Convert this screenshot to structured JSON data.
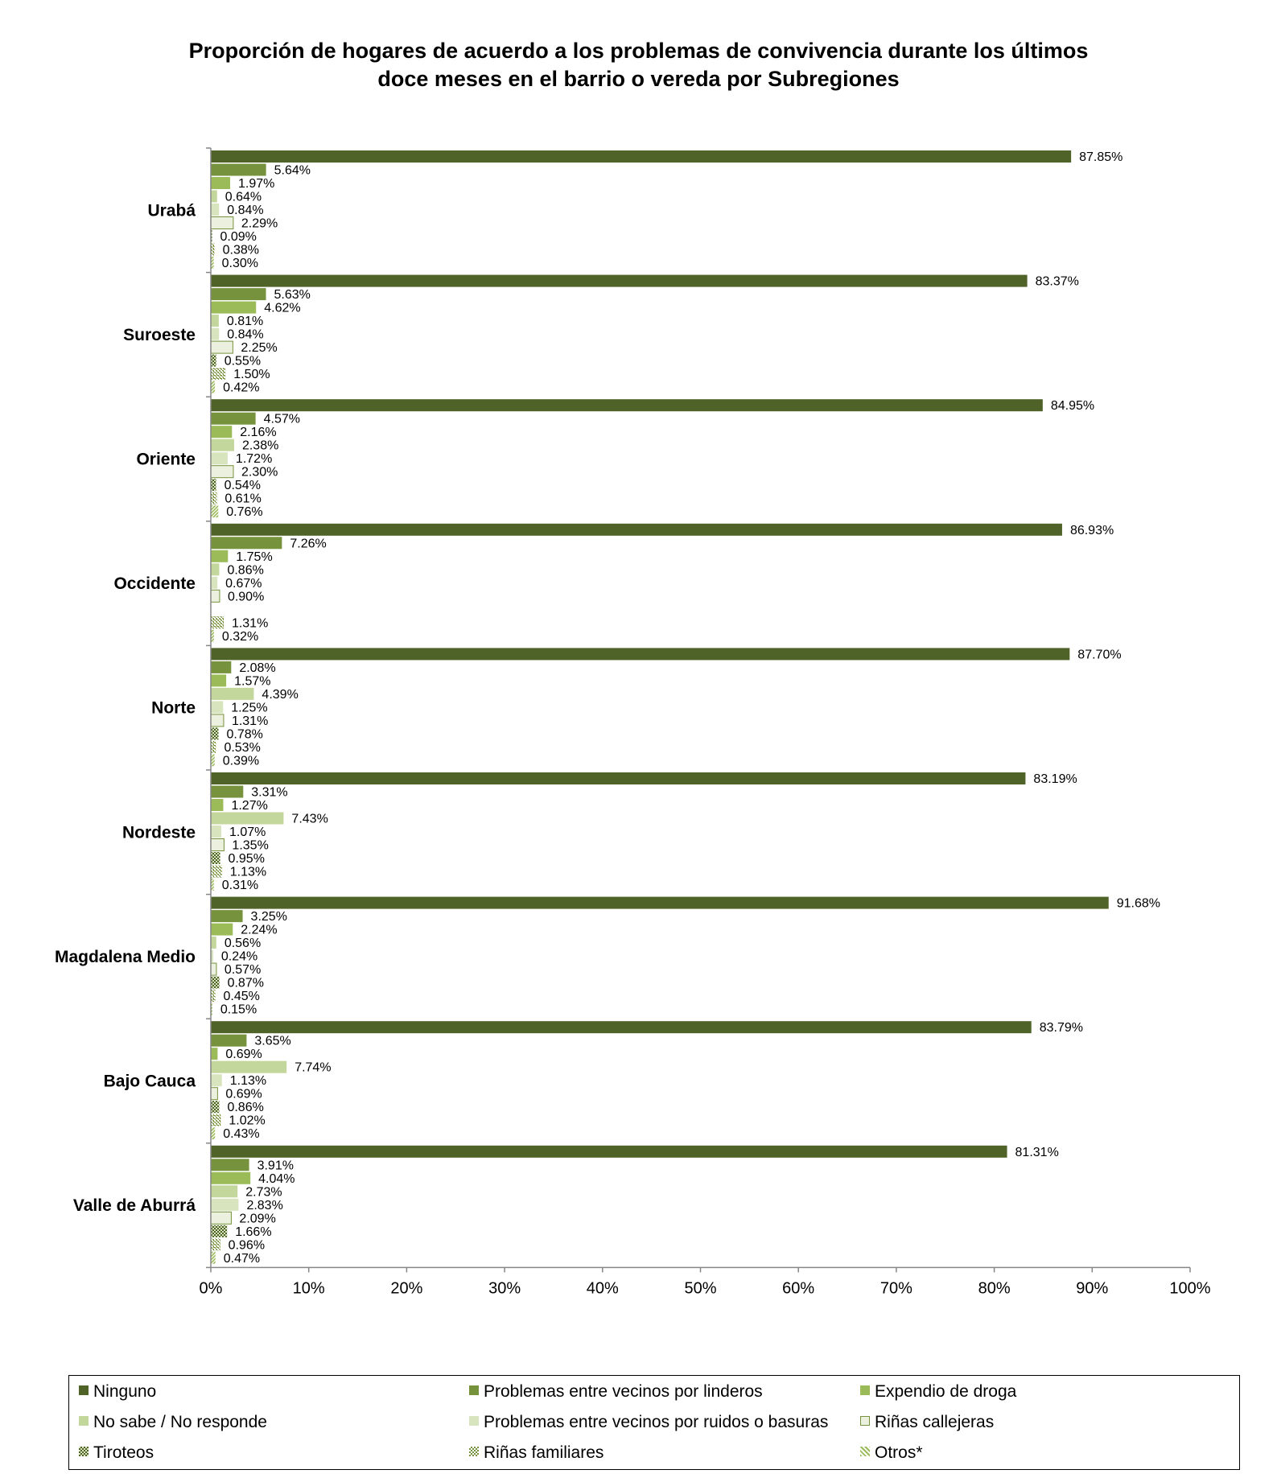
{
  "chart_data": {
    "type": "bar",
    "orientation": "horizontal",
    "title": "Proporción de hogares de acuerdo a los problemas  de convivencia durante los últimos doce meses en el barrio o vereda por Subregiones",
    "title_lines": [
      "Proporción de hogares de acuerdo a los problemas  de convivencia durante los últimos",
      "doce meses en el barrio o vereda por Subregiones"
    ],
    "xlim": [
      0,
      100
    ],
    "x_ticks": [
      "0%",
      "10%",
      "20%",
      "30%",
      "40%",
      "50%",
      "60%",
      "70%",
      "80%",
      "90%",
      "100%"
    ],
    "legend_position": "bottom",
    "grid": false,
    "categories": [
      "Urabá",
      "Suroeste",
      "Oriente",
      "Occidente",
      "Norte",
      "Nordeste",
      "Magdalena Medio",
      "Bajo Cauca",
      "Valle de Aburrá"
    ],
    "series": [
      {
        "name": "Ninguno",
        "color": "#4f6228",
        "pattern": "solid",
        "values": [
          87.85,
          83.37,
          84.95,
          86.93,
          87.7,
          83.19,
          91.68,
          83.79,
          81.31
        ],
        "labels": [
          "87.85%",
          "83.37%",
          "84.95%",
          "86.93%",
          "87.70%",
          "83.19%",
          "91.68%",
          "83.79%",
          "81.31%"
        ]
      },
      {
        "name": "Problemas entre vecinos por linderos",
        "color": "#76923c",
        "pattern": "solid",
        "values": [
          5.64,
          5.63,
          4.57,
          7.26,
          2.08,
          3.31,
          3.25,
          3.65,
          3.91
        ],
        "labels": [
          "5.64%",
          "5.63%",
          "4.57%",
          "7.26%",
          "2.08%",
          "3.31%",
          "3.25%",
          "3.65%",
          "3.91%"
        ]
      },
      {
        "name": "Expendio de droga",
        "color": "#9bbb59",
        "pattern": "solid",
        "values": [
          1.97,
          4.62,
          2.16,
          1.75,
          1.57,
          1.27,
          2.24,
          0.69,
          4.04
        ],
        "labels": [
          "1.97%",
          "4.62%",
          "2.16%",
          "1.75%",
          "1.57%",
          "1.27%",
          "2.24%",
          "0.69%",
          "4.04%"
        ]
      },
      {
        "name": "No sabe / No responde",
        "color": "#c3d69b",
        "pattern": "solid",
        "values": [
          0.64,
          0.81,
          2.38,
          0.86,
          4.39,
          7.43,
          0.56,
          7.74,
          2.73
        ],
        "labels": [
          "0.64%",
          "0.81%",
          "2.38%",
          "0.86%",
          "4.39%",
          "7.43%",
          "0.56%",
          "7.74%",
          "2.73%"
        ]
      },
      {
        "name": "Problemas entre vecinos por ruidos o basuras",
        "color": "#d7e4bd",
        "pattern": "solid",
        "values": [
          0.84,
          0.84,
          1.72,
          0.67,
          1.25,
          1.07,
          0.24,
          1.13,
          2.83
        ],
        "labels": [
          "0.84%",
          "0.84%",
          "1.72%",
          "0.67%",
          "1.25%",
          "1.07%",
          "0.24%",
          "1.13%",
          "2.83%"
        ]
      },
      {
        "name": "Riñas callejeras",
        "color": "#ebf1de",
        "pattern": "outlined",
        "values": [
          2.29,
          2.25,
          2.3,
          0.9,
          1.31,
          1.35,
          0.57,
          0.69,
          2.09
        ],
        "labels": [
          "2.29%",
          "2.25%",
          "2.30%",
          "0.90%",
          "1.31%",
          "1.35%",
          "0.57%",
          "0.69%",
          "2.09%"
        ]
      },
      {
        "name": "Tiroteos",
        "color": "#4f6228",
        "pattern": "dense-dots",
        "values": [
          0.09,
          0.55,
          0.54,
          null,
          0.78,
          0.95,
          0.87,
          0.86,
          1.66
        ],
        "labels": [
          "0.09%",
          "0.55%",
          "0.54%",
          "",
          "0.78%",
          "0.95%",
          "0.87%",
          "0.86%",
          "1.66%"
        ]
      },
      {
        "name": "Riñas familiares",
        "color": "#76923c",
        "pattern": "lattice",
        "values": [
          0.38,
          1.5,
          0.61,
          1.31,
          0.53,
          1.13,
          0.45,
          1.02,
          0.96
        ],
        "labels": [
          "0.38%",
          "1.50%",
          "0.61%",
          "1.31%",
          "0.53%",
          "1.13%",
          "0.45%",
          "1.02%",
          "0.96%"
        ]
      },
      {
        "name": "Otros*",
        "color": "#9bbb59",
        "pattern": "diagonal",
        "values": [
          0.3,
          0.42,
          0.76,
          0.32,
          0.39,
          0.31,
          0.15,
          0.43,
          0.47
        ],
        "labels": [
          "0.30%",
          "0.42%",
          "0.76%",
          "0.32%",
          "0.39%",
          "0.31%",
          "0.15%",
          "0.43%",
          "0.47%"
        ]
      }
    ]
  }
}
